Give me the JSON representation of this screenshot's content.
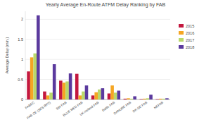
{
  "chart_data": {
    "type": "bar",
    "title": "Yearly Average En-Route ATFM Delay Ranking by FAB",
    "y_label": "Average Delay (min.)",
    "categories": [
      "FABEC",
      "FAB CE (SES RP2)",
      "SW FAB",
      "BLUE MED FAB",
      "UK-Ireland FAB",
      "Baltic FAB",
      "DANUBE FAB",
      "DK-SE FAB",
      "NEFAB"
    ],
    "series": [
      {
        "name": "2015",
        "color": "#c3183f",
        "values": [
          0.7,
          0.2,
          0.47,
          0.64,
          0.1,
          0.15,
          0.02,
          0.01,
          0.01
        ]
      },
      {
        "name": "2016",
        "color": "#f5a623",
        "values": [
          1.05,
          0.1,
          0.42,
          0.1,
          0.18,
          0.35,
          0.03,
          0.02,
          0.02
        ]
      },
      {
        "name": "2017",
        "color": "#b9d96b",
        "values": [
          1.15,
          0.17,
          0.45,
          0.2,
          0.25,
          0.17,
          0.02,
          0.03,
          0.02
        ]
      },
      {
        "name": "2018",
        "color": "#5b3a9e",
        "values": [
          2.1,
          0.88,
          0.65,
          0.35,
          0.28,
          0.22,
          0.08,
          0.12,
          0.03
        ]
      }
    ],
    "ylim": [
      0,
      2.2
    ],
    "yticks": [
      0,
      0.5,
      1,
      1.5,
      2
    ],
    "grid": true,
    "legend": "top-right"
  }
}
